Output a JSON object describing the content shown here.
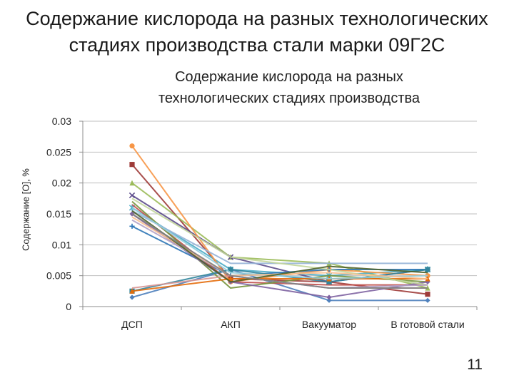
{
  "slide": {
    "title_line1": "Содержание кислорода на разных технологических",
    "title_line2": "стадиях производства стали марки 09Г2С",
    "page_number": "11"
  },
  "chart_data": {
    "type": "line",
    "title_line1": "Содержание кислорода на разных",
    "title_line2": "технологических стадиях производства",
    "xlabel": "",
    "ylabel": "Содержание [O], %",
    "categories": [
      "ДСП",
      "АКП",
      "Вакууматор",
      "В готовой стали"
    ],
    "ylim": [
      0,
      0.03
    ],
    "yticks": [
      0,
      0.005,
      0.01,
      0.015,
      0.02,
      0.025,
      0.03
    ],
    "ytick_labels": [
      "0",
      "0.005",
      "0.01",
      "0.015",
      "0.02",
      "0.025",
      "0.03"
    ],
    "grid": true,
    "series": [
      {
        "color": "#4f81bd",
        "marker": "diamond",
        "values": [
          0.0015,
          0.006,
          0.001,
          0.001
        ]
      },
      {
        "color": "#9e3b38",
        "marker": "square",
        "values": [
          0.023,
          0.0045,
          0.004,
          0.002
        ]
      },
      {
        "color": "#9bbb59",
        "marker": "triangle",
        "values": [
          0.02,
          0.008,
          0.007,
          0.003
        ]
      },
      {
        "color": "#5b4a8a",
        "marker": "x",
        "values": [
          0.018,
          0.008,
          0.004,
          0.006
        ]
      },
      {
        "color": "#4bacc6",
        "marker": "star",
        "values": [
          0.016,
          0.006,
          0.005,
          0.006
        ]
      },
      {
        "color": "#f79646",
        "marker": "circle",
        "values": [
          0.026,
          0.004,
          0.006,
          0.005
        ]
      },
      {
        "color": "#2e75b6",
        "marker": "plus",
        "values": [
          0.013,
          0.005,
          0.006,
          0.006
        ]
      },
      {
        "color": "#c0504d",
        "marker": "none",
        "values": [
          0.0165,
          0.004,
          0.0035,
          0.0035
        ]
      },
      {
        "color": "#77933c",
        "marker": "none",
        "values": [
          0.017,
          0.003,
          0.005,
          0.004
        ]
      },
      {
        "color": "#8064a2",
        "marker": "diamond",
        "values": [
          0.015,
          0.004,
          0.0015,
          0.004
        ]
      },
      {
        "color": "#31859c",
        "marker": "square",
        "values": [
          0.0025,
          0.006,
          0.004,
          0.006
        ]
      },
      {
        "color": "#e46c0a",
        "marker": "triangle",
        "values": [
          0.0025,
          0.0045,
          0.0045,
          0.0045
        ]
      },
      {
        "color": "#95b3d7",
        "marker": "none",
        "values": [
          0.0155,
          0.007,
          0.007,
          0.007
        ]
      },
      {
        "color": "#d99694",
        "marker": "none",
        "values": [
          0.003,
          0.005,
          0.003,
          0.003
        ]
      },
      {
        "color": "#c3d69b",
        "marker": "none",
        "values": [
          0.0175,
          0.008,
          0.006,
          0.0035
        ]
      },
      {
        "color": "#b3a2c7",
        "marker": "none",
        "values": [
          0.014,
          0.005,
          0.003,
          0.0035
        ]
      },
      {
        "color": "#92cddc",
        "marker": "none",
        "values": [
          0.016,
          0.0055,
          0.0045,
          0.005
        ]
      },
      {
        "color": "#fac090",
        "marker": "none",
        "values": [
          0.0145,
          0.005,
          0.0055,
          0.0045
        ]
      },
      {
        "color": "#4f6228",
        "marker": "none",
        "values": [
          0.0155,
          0.004,
          0.0065,
          0.0055
        ]
      },
      {
        "color": "#7f7f7f",
        "marker": "none",
        "values": [
          0.015,
          0.005,
          0.003,
          0.003
        ]
      }
    ]
  }
}
